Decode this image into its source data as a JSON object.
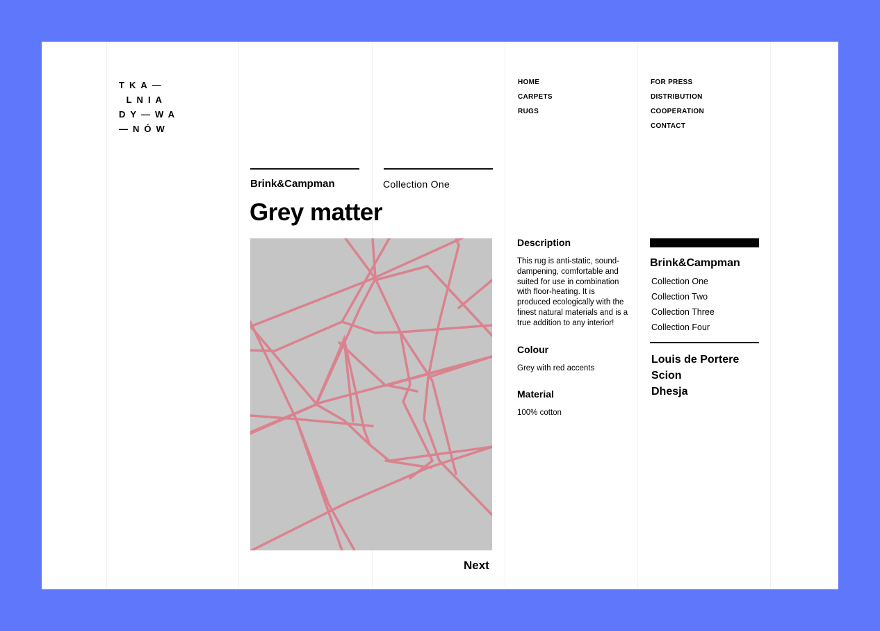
{
  "logo": {
    "text": "TKA—\n LNIA\nDY—WA\n—NÓW"
  },
  "nav": {
    "col1": [
      "HOME",
      "CARPETS",
      "RUGS"
    ],
    "col2": [
      "FOR PRESS",
      "DISTRIBUTION",
      "COOPERATION",
      "CONTACT"
    ]
  },
  "breadcrumb": {
    "brand": "Brink&Campman",
    "collection": "Collection One"
  },
  "product": {
    "title": "Grey matter",
    "next_label": "Next",
    "description_heading": "Description",
    "description": "This rug is anti-static, sound-dampening, comfortable and suited for use in combination with floor-heating. It is produced ecologically with the finest natural materials and is a true addition to any interior!",
    "colour_heading": "Colour",
    "colour": "Grey with red accents",
    "material_heading": "Material",
    "material": "100% cotton"
  },
  "sidebar": {
    "brand": "Brink&Campman",
    "collections": [
      "Collection One",
      "Collection Two",
      "Collection Three",
      "Collection Four"
    ],
    "other_brands": [
      "Louis de Portere",
      "Scion",
      "Dhesja"
    ]
  },
  "colors": {
    "background": "#5f77fb",
    "rug": "#c6c5c5",
    "rug_lines": "#d9838f"
  }
}
